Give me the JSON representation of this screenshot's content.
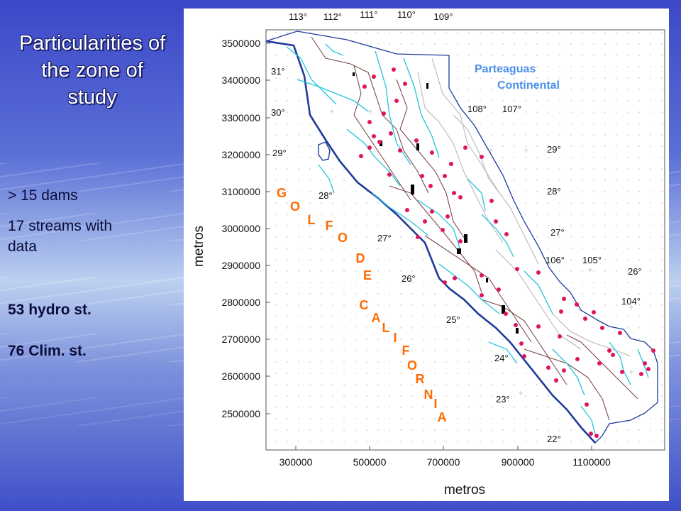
{
  "slide": {
    "title_lines": [
      "Particularities of",
      "the zone of",
      "study"
    ],
    "bullets": [
      "> 15 dams",
      "17 streams with",
      "data",
      "53 hydro st.",
      "76 Clim. st."
    ]
  },
  "map": {
    "x_axis_label": "metros",
    "y_axis_label": "metros",
    "x_ticks": [
      "300000",
      "500000",
      "700000",
      "900000",
      "1100000"
    ],
    "y_ticks": [
      "3500000",
      "3400000",
      "3300000",
      "3200000",
      "3100000",
      "3000000",
      "2900000",
      "2800000",
      "2700000",
      "2600000",
      "2500000"
    ],
    "top_longitudes": [
      "113°",
      "112°",
      "111°",
      "110°",
      "109°"
    ],
    "inner_coordinates": [
      "31°",
      "30°",
      "29°",
      "28°",
      "27°",
      "26°",
      "25°",
      "24°",
      "23°",
      "22°",
      "108°",
      "107°",
      "29°",
      "28°",
      "27°",
      "106°",
      "105°",
      "26°",
      "104°"
    ],
    "divide_label": [
      "Parteaguas",
      "Continental"
    ],
    "gulf_letters": [
      "G",
      "O",
      "L",
      "F",
      "O",
      "D",
      "E",
      "C",
      "A",
      "L",
      "I",
      "F",
      "O",
      "R",
      "N",
      "I",
      "A"
    ],
    "colors": {
      "coast": "#1e3a9a",
      "rivers": "#22c4e0",
      "watershed_boundaries": "#7a4a4a",
      "sub_basins": "#b8b8b8",
      "stations": "#e0145a",
      "dams": "#000000",
      "gulf_label": "#ff6a00",
      "divide_label": "#4a90e8"
    }
  }
}
